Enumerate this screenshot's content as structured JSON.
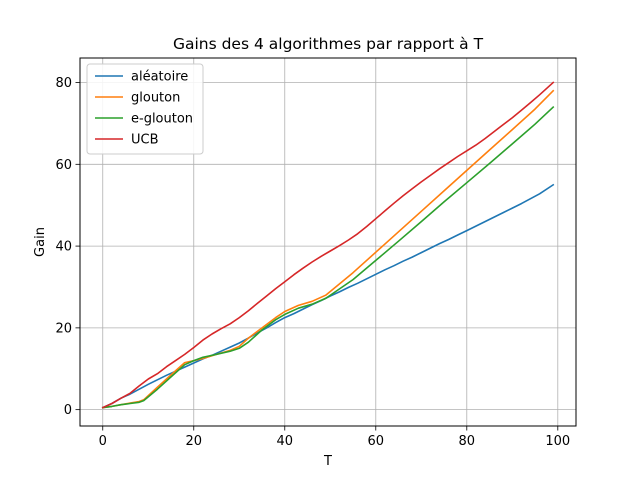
{
  "chart_data": {
    "type": "line",
    "title": "Gains des 4 algorithmes par rapport à T",
    "xlabel": "T",
    "ylabel": "Gain",
    "xlim": [
      -5,
      104
    ],
    "ylim": [
      -4,
      86
    ],
    "xticks": [
      0,
      20,
      40,
      60,
      80,
      100
    ],
    "yticks": [
      0,
      20,
      40,
      60,
      80
    ],
    "grid": true,
    "legend_position": "top-left",
    "series": [
      {
        "name": "aléatoire",
        "color": "#1f77b4",
        "x": [
          0,
          2,
          4,
          6,
          8,
          10,
          12,
          14,
          16,
          18,
          20,
          22,
          24,
          26,
          28,
          30,
          32,
          34,
          36,
          38,
          40,
          42,
          44,
          46,
          48,
          50,
          52,
          54,
          56,
          58,
          60,
          62,
          64,
          66,
          68,
          70,
          72,
          74,
          76,
          78,
          80,
          82,
          84,
          86,
          88,
          90,
          92,
          94,
          96,
          99
        ],
        "values": [
          0.5,
          1.5,
          2.8,
          3.8,
          5.0,
          6.2,
          7.3,
          8.4,
          9.4,
          10.4,
          11.4,
          12.4,
          13.3,
          14.3,
          15.3,
          16.3,
          17.5,
          18.8,
          20.0,
          21.3,
          22.5,
          23.5,
          24.6,
          25.7,
          26.7,
          27.8,
          28.8,
          29.9,
          30.9,
          32.0,
          33.1,
          34.2,
          35.2,
          36.3,
          37.3,
          38.4,
          39.5,
          40.6,
          41.6,
          42.7,
          43.8,
          44.9,
          46.0,
          47.1,
          48.2,
          49.3,
          50.4,
          51.6,
          52.8,
          55.0
        ]
      },
      {
        "name": "glouton",
        "color": "#ff7f0e",
        "x": [
          0,
          2,
          4,
          6,
          8,
          9,
          12,
          15,
          18,
          20,
          22,
          25,
          28,
          30,
          32,
          35,
          38,
          40,
          43,
          46,
          49,
          55,
          60,
          65,
          70,
          75,
          80,
          85,
          90,
          95,
          99
        ],
        "values": [
          0.5,
          0.8,
          1.2,
          1.6,
          2.0,
          2.4,
          5.5,
          8.5,
          11.5,
          12.0,
          12.5,
          13.5,
          14.5,
          15.5,
          17.5,
          20.0,
          22.5,
          24.0,
          25.5,
          26.5,
          28.0,
          33.5,
          38.5,
          43.5,
          48.5,
          53.5,
          58.5,
          63.5,
          68.5,
          73.5,
          78.0
        ]
      },
      {
        "name": "e-glouton",
        "color": "#2ca02c",
        "x": [
          0,
          2,
          4,
          6,
          8,
          9,
          12,
          15,
          18,
          20,
          22,
          25,
          28,
          30,
          32,
          35,
          38,
          40,
          43,
          46,
          49,
          55,
          60,
          65,
          70,
          75,
          80,
          85,
          90,
          95,
          99
        ],
        "values": [
          0.5,
          0.8,
          1.2,
          1.5,
          1.8,
          2.2,
          5.0,
          8.0,
          11.0,
          12.0,
          12.8,
          13.5,
          14.3,
          15.0,
          16.5,
          19.5,
          22.0,
          23.3,
          24.8,
          25.8,
          27.2,
          31.8,
          36.5,
          41.2,
          46.0,
          50.8,
          55.5,
          60.2,
          65.0,
          69.8,
          74.0
        ]
      },
      {
        "name": "UCB",
        "color": "#d62728",
        "x": [
          0,
          2,
          4,
          6,
          8,
          10,
          12,
          14,
          16,
          18,
          20,
          22,
          24,
          26,
          28,
          30,
          32,
          34,
          36,
          38,
          40,
          42,
          44,
          46,
          48,
          50,
          52,
          54,
          56,
          58,
          60,
          62,
          64,
          66,
          68,
          70,
          72,
          74,
          76,
          78,
          80,
          82,
          84,
          86,
          88,
          90,
          92,
          94,
          96,
          99
        ],
        "values": [
          0.5,
          1.5,
          2.8,
          4.0,
          5.8,
          7.5,
          8.8,
          10.5,
          12.0,
          13.5,
          15.2,
          17.0,
          18.5,
          19.8,
          21.0,
          22.5,
          24.2,
          26.0,
          27.8,
          29.6,
          31.3,
          33.0,
          34.6,
          36.1,
          37.5,
          38.8,
          40.1,
          41.5,
          43.0,
          44.8,
          46.7,
          48.6,
          50.5,
          52.3,
          54.0,
          55.7,
          57.3,
          58.9,
          60.4,
          61.9,
          63.3,
          64.7,
          66.3,
          68.0,
          69.7,
          71.4,
          73.2,
          75.1,
          77.0,
          80.0
        ]
      }
    ]
  }
}
